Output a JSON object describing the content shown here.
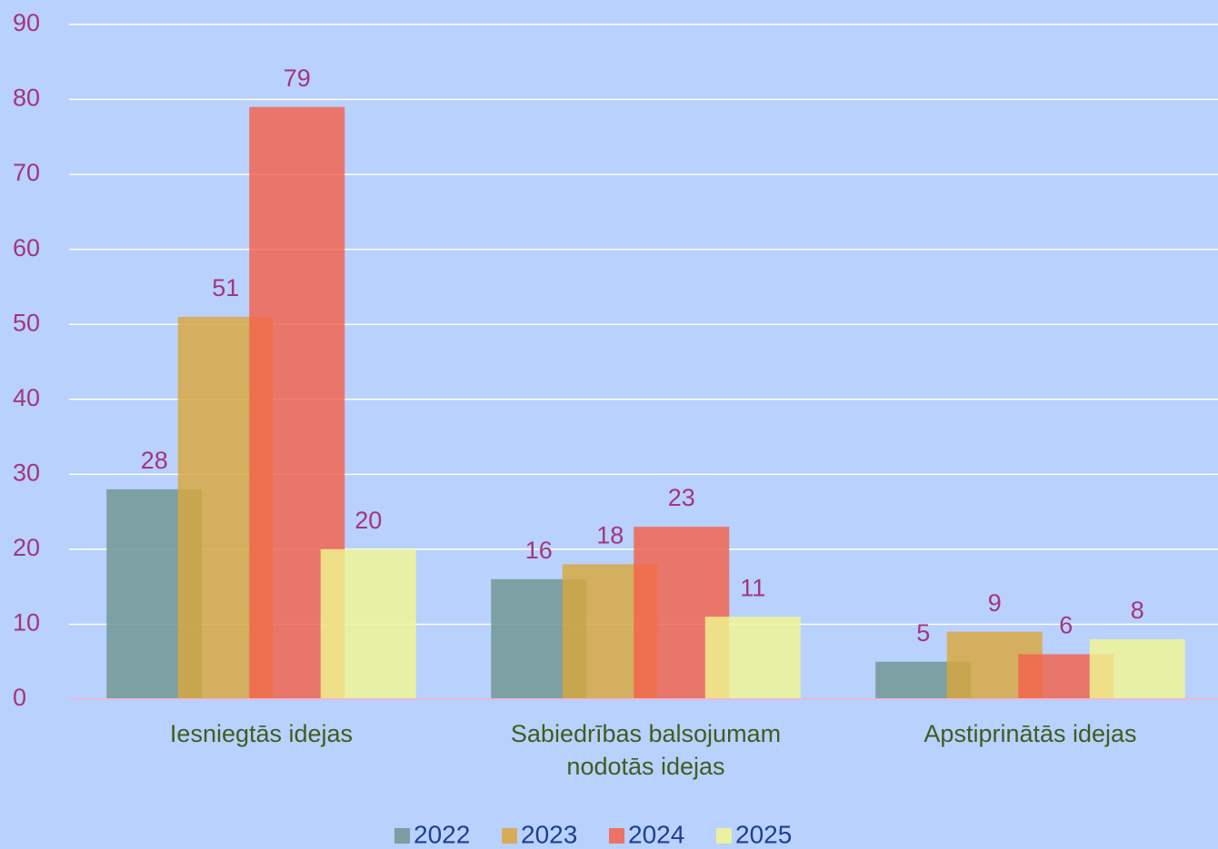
{
  "chart_data": {
    "type": "bar",
    "categories": [
      "Iesniegtās idejas",
      "Sabiedrības balsojumam nodotās idejas",
      "Apstiprinātās idejas"
    ],
    "series": [
      {
        "name": "2022",
        "color": "#6f9590",
        "values": [
          28,
          16,
          5
        ]
      },
      {
        "name": "2023",
        "color": "#d9a73c",
        "values": [
          51,
          18,
          9
        ]
      },
      {
        "name": "2024",
        "color": "#f4624a",
        "values": [
          79,
          23,
          6
        ]
      },
      {
        "name": "2025",
        "color": "#f2f790",
        "values": [
          20,
          11,
          8
        ]
      }
    ],
    "ylim": [
      0,
      90
    ],
    "yticks": [
      0,
      10,
      20,
      30,
      40,
      50,
      60,
      70,
      80,
      90
    ],
    "grid": true,
    "legend": "bottom"
  }
}
